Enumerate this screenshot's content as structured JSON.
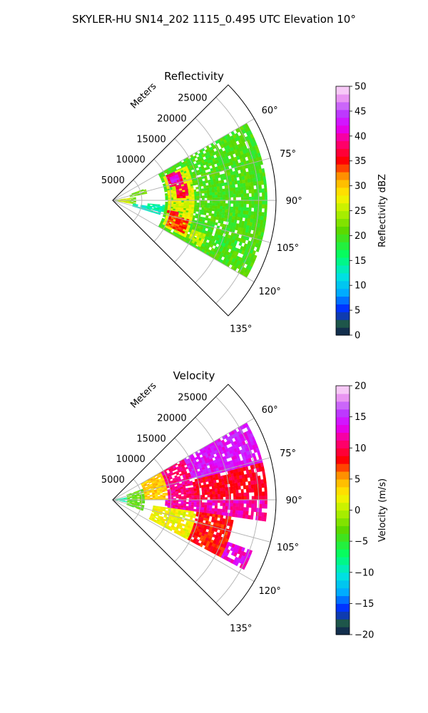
{
  "figure": {
    "title": "SKYLER-HU  SN14_202  1115_0.495 UTC Elevation 10°"
  },
  "chart_data": [
    {
      "type": "heatmap",
      "projection": "polar-sector",
      "title": "Reflectivity",
      "range_axis_label": "Meters",
      "range_ticks": [
        5000,
        10000,
        15000,
        20000,
        25000
      ],
      "range_tick_labels": [
        "5000",
        "10000",
        "15000",
        "20000",
        "25000"
      ],
      "range_max": 28000,
      "azimuth_ticks_deg": [
        60,
        75,
        90,
        105,
        120,
        135
      ],
      "azimuth_tick_labels": [
        "60°",
        "75°",
        "90°",
        "105°",
        "120°",
        "135°"
      ],
      "azimuth_range_deg": [
        45,
        135
      ],
      "grid": true,
      "colorbar": {
        "label": "Reflectivity dBZ",
        "vmin": 0,
        "vmax": 50,
        "ticks": [
          0,
          5,
          10,
          15,
          20,
          25,
          30,
          35,
          40,
          45,
          50
        ],
        "tick_labels": [
          "0",
          "5",
          "10",
          "15",
          "20",
          "25",
          "30",
          "35",
          "40",
          "45",
          "50"
        ]
      },
      "features": [
        {
          "az": [
            82,
            100
          ],
          "r": [
            0,
            4000
          ],
          "value": 22
        },
        {
          "az": [
            82,
            101
          ],
          "r": [
            1000,
            3000
          ],
          "value": 27
        },
        {
          "az": [
            70,
            79
          ],
          "r": [
            3000,
            6000
          ],
          "value": 22
        },
        {
          "az": [
            99,
            107
          ],
          "r": [
            3500,
            8500
          ],
          "value": 13
        },
        {
          "az": [
            95,
            103
          ],
          "r": [
            6000,
            9000
          ],
          "value": 14
        },
        {
          "az": [
            60,
            120
          ],
          "r": [
            9000,
            26500
          ],
          "value": 20
        },
        {
          "az": [
            65,
            117
          ],
          "r": [
            9500,
            14000
          ],
          "value": 27
        },
        {
          "az": [
            65,
            77
          ],
          "r": [
            10000,
            12500
          ],
          "value": 38
        },
        {
          "az": [
            68,
            74
          ],
          "r": [
            10500,
            12000
          ],
          "value": 42
        },
        {
          "az": [
            77,
            88
          ],
          "r": [
            11000,
            13000
          ],
          "value": 37
        },
        {
          "az": [
            100,
            104
          ],
          "r": [
            9500,
            11500
          ],
          "value": 36
        },
        {
          "az": [
            104,
            115
          ],
          "r": [
            10000,
            13500
          ],
          "value": 34
        },
        {
          "az": [
            110,
            118
          ],
          "r": [
            14500,
            17000
          ],
          "value": 26
        },
        {
          "az": [
            108,
            114
          ],
          "r": [
            19000,
            22500
          ],
          "value": 19
        }
      ]
    },
    {
      "type": "heatmap",
      "projection": "polar-sector",
      "title": "Velocity",
      "range_axis_label": "Meters",
      "range_ticks": [
        5000,
        10000,
        15000,
        20000,
        25000
      ],
      "range_tick_labels": [
        "5000",
        "10000",
        "15000",
        "20000",
        "25000"
      ],
      "range_max": 28000,
      "azimuth_ticks_deg": [
        60,
        75,
        90,
        105,
        120,
        135
      ],
      "azimuth_tick_labels": [
        "60°",
        "75°",
        "90°",
        "105°",
        "120°",
        "135°"
      ],
      "azimuth_range_deg": [
        45,
        135
      ],
      "grid": true,
      "colorbar": {
        "label": "Velocity (m/s)",
        "vmin": -20,
        "vmax": 20,
        "ticks": [
          -20,
          -15,
          -10,
          -5,
          0,
          5,
          10,
          15,
          20
        ],
        "tick_labels": [
          "−20",
          "−15",
          "−10",
          "−5",
          "0",
          "5",
          "10",
          "15",
          "20"
        ]
      },
      "features": [
        {
          "az": [
            80,
            100
          ],
          "r": [
            0,
            2500
          ],
          "value": -9
        },
        {
          "az": [
            70,
            110
          ],
          "r": [
            2500,
            5500
          ],
          "value": -3
        },
        {
          "az": [
            60,
            90
          ],
          "r": [
            5500,
            9500
          ],
          "value": 4
        },
        {
          "az": [
            60,
            90
          ],
          "r": [
            9500,
            14000
          ],
          "value": 11
        },
        {
          "az": [
            60,
            76
          ],
          "r": [
            14000,
            26500
          ],
          "value": 14
        },
        {
          "az": [
            76,
            90
          ],
          "r": [
            14000,
            26500
          ],
          "value": 9
        },
        {
          "az": [
            90,
            98
          ],
          "r": [
            9000,
            26500
          ],
          "value": 12
        },
        {
          "az": [
            98,
            118
          ],
          "r": [
            7000,
            14500
          ],
          "value": 2
        },
        {
          "az": [
            98,
            118
          ],
          "r": [
            14500,
            21000
          ],
          "value": 8
        },
        {
          "az": [
            110,
            118
          ],
          "r": [
            21000,
            25500
          ],
          "value": 13
        }
      ]
    }
  ]
}
